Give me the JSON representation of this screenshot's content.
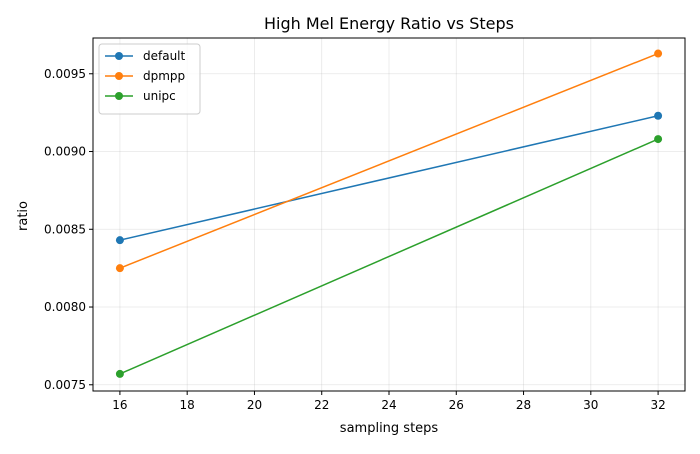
{
  "chart_data": {
    "type": "line",
    "title": "High Mel Energy Ratio vs Steps",
    "xlabel": "sampling steps",
    "ylabel": "ratio",
    "xlim": [
      15.2,
      32.8
    ],
    "ylim": [
      0.00746,
      0.00973
    ],
    "xticks": [
      16,
      18,
      20,
      22,
      24,
      26,
      28,
      30,
      32
    ],
    "yticks": [
      0.0075,
      0.008,
      0.0085,
      0.009,
      0.0095
    ],
    "ytick_labels": [
      "0.0075",
      "0.0080",
      "0.0085",
      "0.0090",
      "0.0095"
    ],
    "x": [
      16,
      32
    ],
    "grid": true,
    "legend_position": "top-left",
    "series": [
      {
        "name": "default",
        "color": "#1f77b4",
        "values": [
          0.00843,
          0.00923
        ]
      },
      {
        "name": "dpmpp",
        "color": "#ff7f0e",
        "values": [
          0.00825,
          0.00963
        ]
      },
      {
        "name": "unipc",
        "color": "#2ca02c",
        "values": [
          0.00757,
          0.00908
        ]
      }
    ]
  }
}
